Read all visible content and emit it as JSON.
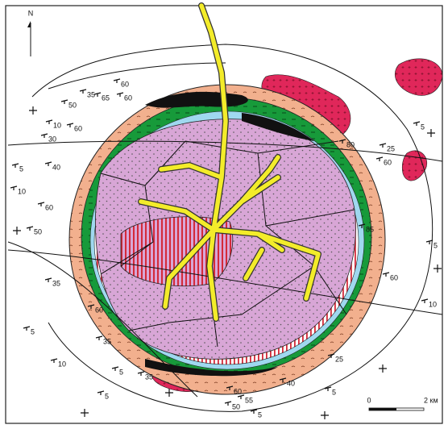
{
  "north_arrow": "N",
  "scale": {
    "start": "0",
    "end": "2 км"
  },
  "dip_labels": [
    60,
    35,
    50,
    65,
    60,
    10,
    60,
    30,
    40,
    5,
    10,
    60,
    50,
    35,
    60,
    5,
    35,
    10,
    5,
    35,
    5,
    60,
    55,
    50,
    5,
    40,
    5,
    25,
    60,
    10,
    5,
    85,
    60,
    25,
    80,
    5
  ]
}
